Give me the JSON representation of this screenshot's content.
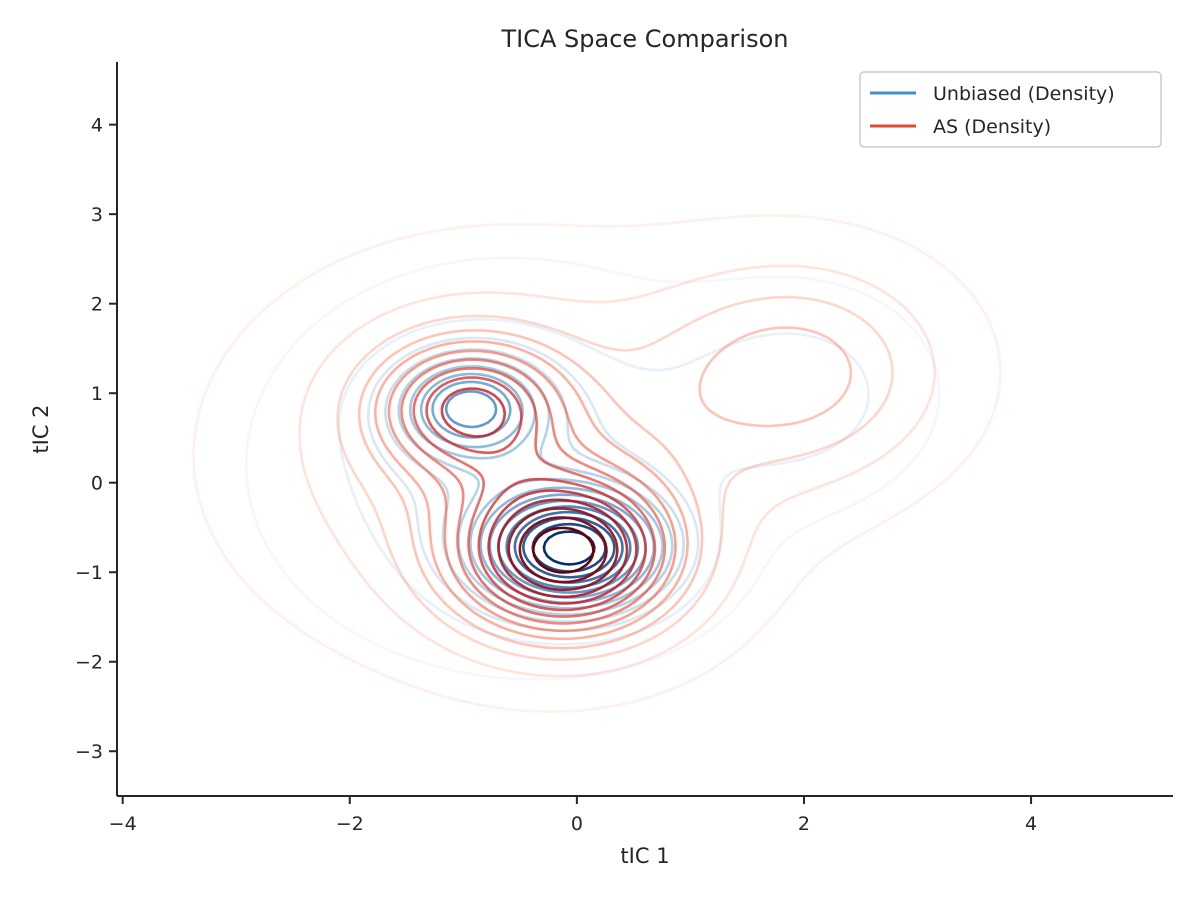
{
  "chart_data": {
    "type": "contour",
    "title": "TICA Space Comparison",
    "xlabel": "tIC 1",
    "ylabel": "tIC 2",
    "xlim": [
      -4.05,
      5.25
    ],
    "ylim": [
      -3.5,
      4.7
    ],
    "xticks": [
      -4,
      -2,
      0,
      2,
      4
    ],
    "yticks": [
      -3,
      -2,
      -1,
      0,
      1,
      2,
      3,
      4
    ],
    "xtick_labels": [
      "−4",
      "−2",
      "0",
      "2",
      "4"
    ],
    "ytick_labels": [
      "−3",
      "−2",
      "−1",
      "0",
      "1",
      "2",
      "3",
      "4"
    ],
    "grid": false,
    "legend_position": "top-right",
    "series": [
      {
        "name": "Unbiased (Density)",
        "legend_color": "#4292c6",
        "colormap": "Blues",
        "levels": 14,
        "components": [
          {
            "x": -0.05,
            "y": -0.75,
            "sx": 0.55,
            "sy": 0.45,
            "w": 1.0
          },
          {
            "x": -0.95,
            "y": 0.85,
            "sx": 0.45,
            "sy": 0.4,
            "w": 0.55
          },
          {
            "x": 1.95,
            "y": 1.0,
            "sx": 0.7,
            "sy": 0.7,
            "w": 0.16
          },
          {
            "x": -0.6,
            "y": 0.2,
            "sx": 1.2,
            "sy": 1.2,
            "w": 0.22
          }
        ]
      },
      {
        "name": "AS (Density)",
        "legend_color": "#e34a33",
        "colormap": "Reds",
        "levels": 14,
        "components": [
          {
            "x": -0.1,
            "y": -0.8,
            "sx": 0.65,
            "sy": 0.6,
            "w": 1.0
          },
          {
            "x": -0.95,
            "y": 0.85,
            "sx": 0.55,
            "sy": 0.5,
            "w": 0.6
          },
          {
            "x": 1.95,
            "y": 1.25,
            "sx": 0.85,
            "sy": 0.8,
            "w": 0.3
          },
          {
            "x": -0.6,
            "y": 0.3,
            "sx": 1.4,
            "sy": 1.3,
            "w": 0.25
          }
        ]
      }
    ]
  }
}
